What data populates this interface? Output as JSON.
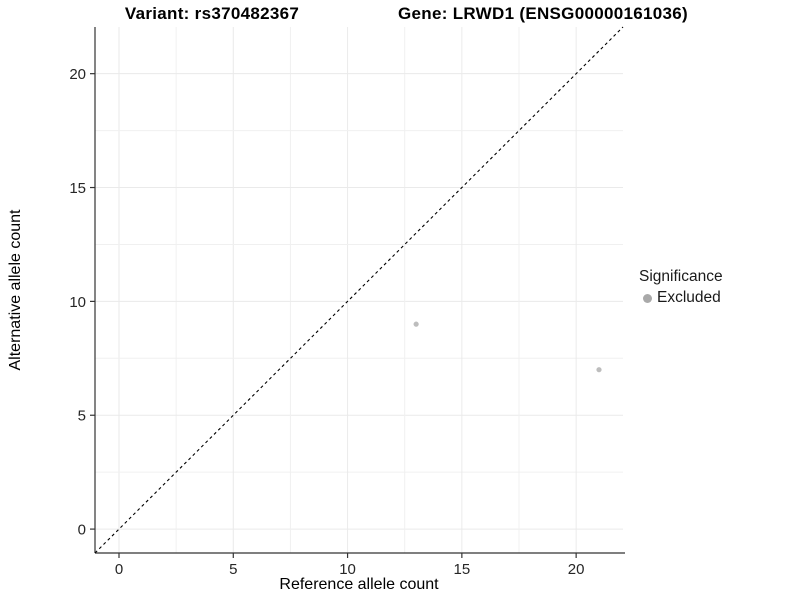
{
  "chart_data": {
    "type": "scatter",
    "title_left": "Variant: rs370482367",
    "title_right": "Gene: LRWD1 (ENSG00000161036)",
    "xlabel": "Reference allele count",
    "ylabel": "Alternative allele count",
    "xlim": [
      -1.05,
      22.05
    ],
    "ylim": [
      -1.05,
      22.05
    ],
    "x_ticks": [
      0,
      5,
      10,
      15,
      20
    ],
    "y_ticks": [
      0,
      5,
      10,
      15,
      20
    ],
    "minor_grid_step": 2.5,
    "grid": true,
    "points": [
      {
        "x": 13,
        "y": 9,
        "series": "Excluded"
      },
      {
        "x": 21,
        "y": 7,
        "series": "Excluded"
      }
    ],
    "reference_line": {
      "type": "identity",
      "style": "dashed",
      "slope": 1,
      "intercept": 0
    },
    "legend": {
      "title": "Significance",
      "position": "right",
      "entries": [
        {
          "label": "Excluded",
          "color": "#a9a9a9"
        }
      ]
    },
    "colors": {
      "point": "#bdbdbd",
      "grid_major": "#eaeaea",
      "grid_minor": "#f0f0f0",
      "axis": "#333333",
      "dashed_line": "#000000"
    }
  }
}
